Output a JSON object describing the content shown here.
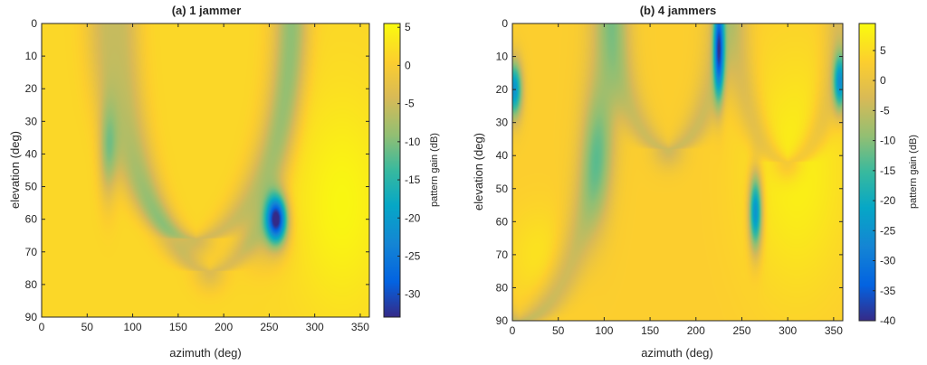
{
  "chart_data": [
    {
      "type": "heatmap",
      "title": "(a) 1 jammer",
      "xlabel": "azimuth (deg)",
      "ylabel": "elevation (deg)",
      "colorbar_label": "pattern gain (dB)",
      "xlim": [
        0,
        360
      ],
      "ylim": [
        0,
        90
      ],
      "y_direction": "reversed",
      "xticks": [
        0,
        50,
        100,
        150,
        200,
        250,
        300,
        350
      ],
      "yticks": [
        0,
        10,
        20,
        30,
        40,
        50,
        60,
        70,
        80,
        90
      ],
      "clim": [
        -33,
        5.5
      ],
      "cticks": [
        5,
        0,
        -5,
        -10,
        -15,
        -20,
        -25,
        -30
      ],
      "colormap": "parula",
      "background_level": 1.5,
      "features": [
        {
          "kind": "arc",
          "x_center": 170,
          "x_spread": 102,
          "y_top": -5,
          "y_bottom": 66,
          "width": 14,
          "depth": 6
        },
        {
          "kind": "arc",
          "x_center": 185,
          "x_spread": 92,
          "y_top": -5,
          "y_bottom": 76,
          "width": 12,
          "depth": 5
        },
        {
          "kind": "spot",
          "x": 73,
          "y": 40,
          "sx": 7,
          "sy": 10,
          "depth": 9
        },
        {
          "kind": "spot",
          "x": 258,
          "y": 60,
          "sx": 8,
          "sy": 5,
          "depth": 34
        },
        {
          "kind": "spot",
          "x": 245,
          "y": 67,
          "sx": 18,
          "sy": 6,
          "depth": 4
        },
        {
          "kind": "spot",
          "x": 330,
          "y": 55,
          "sx": 35,
          "sy": 22,
          "depth": -3.5
        }
      ]
    },
    {
      "type": "heatmap",
      "title": "(b) 4 jammers",
      "xlabel": "azimuth (deg)",
      "ylabel": "elevation (deg)",
      "colorbar_label": "pattern gain (dB)",
      "xlim": [
        0,
        360
      ],
      "ylim": [
        0,
        90
      ],
      "y_direction": "reversed",
      "xticks": [
        0,
        50,
        100,
        150,
        200,
        250,
        300,
        350
      ],
      "yticks": [
        0,
        10,
        20,
        30,
        40,
        50,
        60,
        70,
        80,
        90
      ],
      "clim": [
        -40,
        9.5
      ],
      "cticks": [
        5,
        0,
        -5,
        -10,
        -15,
        -20,
        -25,
        -30,
        -35,
        -40
      ],
      "colormap": "parula",
      "background_level": 3,
      "features": [
        {
          "kind": "arc",
          "x_center": 8,
          "x_spread": 95,
          "y_top": -5,
          "y_bottom": 90,
          "width": 14,
          "depth": 8
        },
        {
          "kind": "arc",
          "x_center": 170,
          "x_spread": 58,
          "y_top": -5,
          "y_bottom": 38,
          "width": 12,
          "depth": 7
        },
        {
          "kind": "arc",
          "x_center": 300,
          "x_spread": 56,
          "y_top": -5,
          "y_bottom": 42,
          "width": 11,
          "depth": 6
        },
        {
          "kind": "spot",
          "x": 2,
          "y": 20,
          "sx": 6,
          "sy": 6,
          "depth": 28
        },
        {
          "kind": "spot",
          "x": 225,
          "y": 8,
          "sx": 4,
          "sy": 10,
          "depth": 35
        },
        {
          "kind": "spot",
          "x": 265,
          "y": 57,
          "sx": 5,
          "sy": 8,
          "depth": 30
        },
        {
          "kind": "spot",
          "x": 357,
          "y": 18,
          "sx": 5,
          "sy": 6,
          "depth": 26
        },
        {
          "kind": "spot",
          "x": 92,
          "y": 42,
          "sx": 12,
          "sy": 14,
          "depth": 8
        },
        {
          "kind": "spot",
          "x": 310,
          "y": 45,
          "sx": 40,
          "sy": 25,
          "depth": -5
        },
        {
          "kind": "spot",
          "x": 30,
          "y": 70,
          "sx": 25,
          "sy": 10,
          "depth": -3
        }
      ]
    }
  ]
}
